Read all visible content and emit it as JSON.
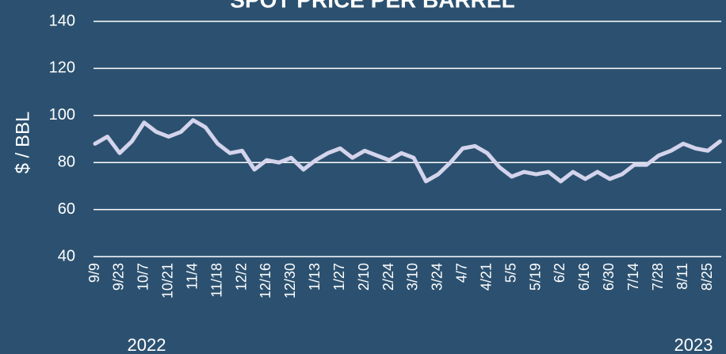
{
  "chart_data": {
    "type": "line",
    "title": "SPOT PRICE PER BARREL",
    "y_label": "$ / BBL",
    "year_labels": [
      "2022",
      "2023"
    ],
    "categories": [
      "9/9",
      null,
      "9/23",
      null,
      "10/7",
      null,
      "10/21",
      null,
      "11/4",
      null,
      "11/18",
      null,
      "12/2",
      null,
      "12/16",
      null,
      "12/30",
      null,
      "1/13",
      null,
      "1/27",
      null,
      "2/10",
      null,
      "2/24",
      null,
      "3/10",
      null,
      "3/24",
      null,
      "4/7",
      null,
      "4/21",
      null,
      "5/5",
      null,
      "5/19",
      null,
      "6/2",
      null,
      "6/16",
      null,
      "6/30",
      null,
      "7/14",
      null,
      "7/28",
      null,
      "8/11",
      null,
      "8/25",
      null
    ],
    "series": [
      {
        "color": "#d4d4ec",
        "values": [
          88,
          91,
          84,
          89,
          97,
          93,
          91,
          93,
          98,
          95,
          88,
          84,
          85,
          77,
          81,
          80,
          82,
          77,
          81,
          84,
          86,
          82,
          85,
          83,
          81,
          84,
          82,
          72,
          75,
          80,
          86,
          87,
          84,
          78,
          74,
          76,
          75,
          76,
          72,
          76,
          73,
          76,
          73,
          75,
          79,
          79,
          83,
          85,
          88,
          86,
          85,
          89
        ]
      }
    ],
    "ylim": [
      40,
      140
    ],
    "yticks": [
      40,
      60,
      80,
      100,
      120,
      140
    ],
    "grid": true
  }
}
